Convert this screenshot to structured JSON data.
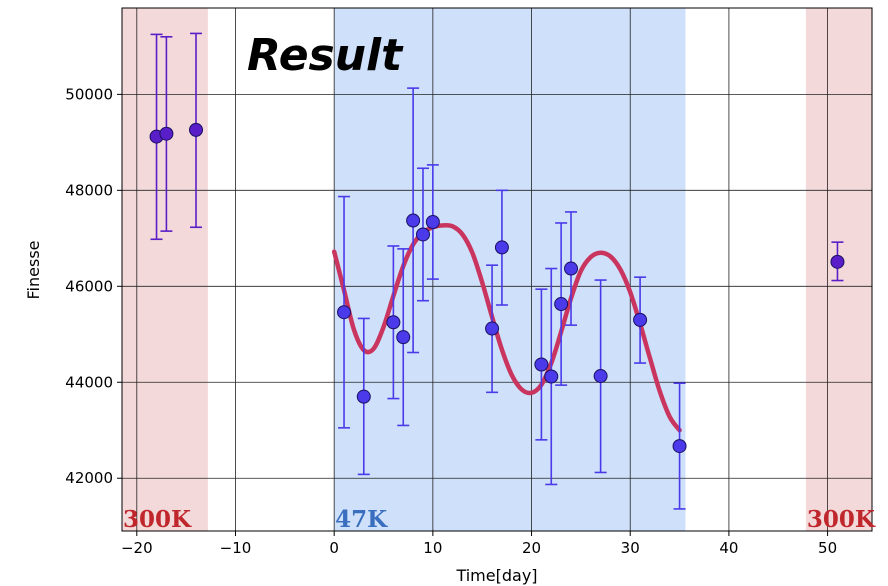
{
  "chart_data": {
    "type": "scatter",
    "title": "Result",
    "xlabel": "Time[day]",
    "ylabel": "Finesse",
    "xlim": [
      -21.5,
      54.5
    ],
    "ylim": [
      40900,
      51800
    ],
    "grid": true,
    "x_ticks": [
      -20,
      -10,
      0,
      10,
      20,
      30,
      40,
      50
    ],
    "x_tick_labels": [
      "−20",
      "−10",
      "0",
      "10",
      "20",
      "30",
      "40",
      "50"
    ],
    "y_ticks": [
      42000,
      44000,
      46000,
      48000,
      50000
    ],
    "y_tick_labels": [
      "42000",
      "44000",
      "46000",
      "48000",
      "50000"
    ],
    "regions": [
      {
        "label": "300K",
        "x": [
          -21.5,
          -12.8
        ],
        "color": "#f3d9d9",
        "label_color": "#c0272d"
      },
      {
        "label": "47K",
        "x": [
          0,
          35.6
        ],
        "color": "#cfe0fa",
        "label_color": "#3a6fbf"
      },
      {
        "label": "300K",
        "x": [
          47.8,
          54.5
        ],
        "color": "#f3d9d9",
        "label_color": "#c0272d"
      }
    ],
    "points": [
      {
        "x": -18.0,
        "y": 49120,
        "err_low": 46980,
        "err_high": 51250,
        "color": "#5a1ec8"
      },
      {
        "x": -17.0,
        "y": 49180,
        "err_low": 47150,
        "err_high": 51200,
        "color": "#5a1ec8"
      },
      {
        "x": -14.0,
        "y": 49260,
        "err_low": 47230,
        "err_high": 51270,
        "color": "#5a1ec8"
      },
      {
        "x": 1.0,
        "y": 45460,
        "err_low": 43050,
        "err_high": 47870,
        "color": "#4a3aea"
      },
      {
        "x": 3.0,
        "y": 43700,
        "err_low": 42080,
        "err_high": 45330,
        "color": "#4a3aea"
      },
      {
        "x": 6.0,
        "y": 45250,
        "err_low": 43660,
        "err_high": 46840,
        "color": "#4a3aea"
      },
      {
        "x": 7.0,
        "y": 44940,
        "err_low": 43100,
        "err_high": 46780,
        "color": "#4a3aea"
      },
      {
        "x": 8.0,
        "y": 47370,
        "err_low": 44620,
        "err_high": 50130,
        "color": "#4a3aea"
      },
      {
        "x": 9.0,
        "y": 47080,
        "err_low": 45700,
        "err_high": 48460,
        "color": "#4a3aea"
      },
      {
        "x": 10.0,
        "y": 47340,
        "err_low": 46150,
        "err_high": 48530,
        "color": "#4a3aea"
      },
      {
        "x": 16.0,
        "y": 45120,
        "err_low": 43790,
        "err_high": 46440,
        "color": "#4a3aea"
      },
      {
        "x": 17.0,
        "y": 46810,
        "err_low": 45610,
        "err_high": 48000,
        "color": "#4a3aea"
      },
      {
        "x": 21.0,
        "y": 44370,
        "err_low": 42800,
        "err_high": 45940,
        "color": "#4a3aea"
      },
      {
        "x": 22.0,
        "y": 44120,
        "err_low": 41870,
        "err_high": 46370,
        "color": "#4a3aea"
      },
      {
        "x": 23.0,
        "y": 45630,
        "err_low": 43940,
        "err_high": 47320,
        "color": "#4a3aea"
      },
      {
        "x": 24.0,
        "y": 46370,
        "err_low": 45190,
        "err_high": 47550,
        "color": "#4a3aea"
      },
      {
        "x": 27.0,
        "y": 44130,
        "err_low": 42120,
        "err_high": 46130,
        "color": "#4a3aea"
      },
      {
        "x": 31.0,
        "y": 45300,
        "err_low": 44400,
        "err_high": 46190,
        "color": "#4a3aea"
      },
      {
        "x": 35.0,
        "y": 42670,
        "err_low": 41360,
        "err_high": 43980,
        "color": "#4a3aea"
      },
      {
        "x": 51.0,
        "y": 46510,
        "err_low": 46120,
        "err_high": 46920,
        "color": "#5a1ec8"
      }
    ],
    "fit_curve": {
      "color": "#c9355f",
      "x": [
        0,
        1,
        2,
        3,
        4,
        5,
        6,
        7,
        8,
        9,
        10,
        11,
        12,
        13,
        14,
        15,
        16,
        17,
        18,
        19,
        20,
        21,
        22,
        23,
        24,
        25,
        26,
        27,
        28,
        29,
        30,
        31,
        32,
        33,
        34,
        35
      ],
      "y": [
        46720,
        45920,
        45100,
        44670,
        44700,
        45150,
        45800,
        46420,
        46870,
        47120,
        47230,
        47270,
        47250,
        47080,
        46700,
        46080,
        45360,
        44680,
        44150,
        43850,
        43780,
        43950,
        44400,
        45050,
        45750,
        46320,
        46610,
        46700,
        46620,
        46350,
        45880,
        45220,
        44500,
        43810,
        43280,
        43000
      ]
    }
  }
}
